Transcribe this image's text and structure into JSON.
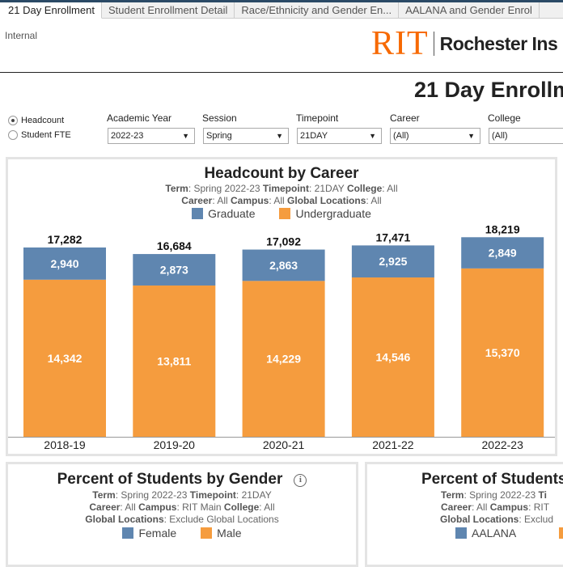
{
  "tabs": [
    "21 Day Enrollment",
    "Student Enrollment Detail",
    "Race/Ethnicity and Gender En...",
    "AALANA and Gender Enrol"
  ],
  "header": {
    "internal": "Internal",
    "logo_mark": "RIT",
    "logo_name": "Rochester Ins",
    "title": "21 Day Enrollm"
  },
  "measure": {
    "options": [
      "Headcount",
      "Student FTE"
    ],
    "selected": "Headcount"
  },
  "filters": [
    {
      "label": "Academic Year",
      "value": "2022-23"
    },
    {
      "label": "Session",
      "value": "Spring"
    },
    {
      "label": "Timepoint",
      "value": "21DAY"
    },
    {
      "label": "Career",
      "value": "(All)"
    },
    {
      "label": "College",
      "value": "(All)"
    }
  ],
  "colors": {
    "graduate": "#5f86b0",
    "undergraduate": "#f59c3e"
  },
  "headcount": {
    "title": "Headcount by Career",
    "sub1": {
      "k1": "Term",
      "v1": ": Spring 2022-23  ",
      "k2": "Timepoint",
      "v2": ": 21DAY ",
      "k3": "College",
      "v3": ": All"
    },
    "sub2": {
      "k1": "Career",
      "v1": ": All  ",
      "k2": "Campus",
      "v2": ": All  ",
      "k3": "Global Locations",
      "v3": ": All"
    }
  },
  "chart_data": {
    "type": "bar",
    "stacked": true,
    "title": "Headcount by Career",
    "categories": [
      "2018-19",
      "2019-20",
      "2020-21",
      "2021-22",
      "2022-23"
    ],
    "series": [
      {
        "name": "Graduate",
        "values": [
          2940,
          2873,
          2863,
          2925,
          2849
        ]
      },
      {
        "name": "Undergraduate",
        "values": [
          14342,
          13811,
          14229,
          14546,
          15370
        ]
      }
    ],
    "totals": [
      17282,
      16684,
      17092,
      17471,
      18219
    ],
    "ylim": [
      0,
      19200
    ],
    "legend": "top"
  },
  "gender": {
    "title": "Percent of Students by Gender",
    "sub1": {
      "k1": "Term",
      "v1": ": Spring 2022-23   ",
      "k2": "Timepoint",
      "v2": ": 21DAY"
    },
    "sub2": {
      "k1": "Career",
      "v1": ": All  ",
      "k2": "Campus",
      "v2": ": RIT Main ",
      "k3": "College",
      "v3": ": All"
    },
    "sub3": {
      "k1": "Global Locations",
      "v1": ": Exclude Global Locations"
    },
    "legend": [
      "Female",
      "Male"
    ]
  },
  "aalana": {
    "title": "Percent of Students",
    "sub1": {
      "k1": "Term",
      "v1": ": Spring 2022-23   ",
      "k2": "Ti"
    },
    "sub2": {
      "k1": "Career",
      "v1": ": All  ",
      "k2": "Campus",
      "v2": ": RIT"
    },
    "sub3": {
      "k1": "Global Locations",
      "v1": ": Exclud"
    },
    "legend": [
      "AALANA"
    ]
  }
}
